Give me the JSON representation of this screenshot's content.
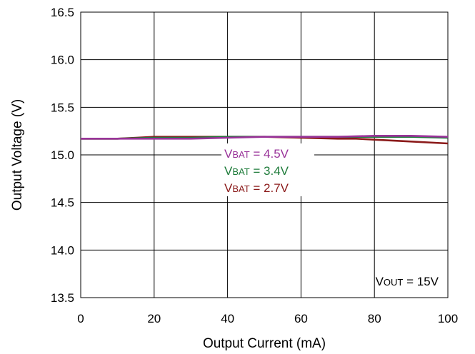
{
  "chart_data": {
    "type": "line",
    "xlabel": "Output Current (mA)",
    "ylabel": "Output Voltage (V)",
    "xlim": [
      0,
      100
    ],
    "ylim": [
      13.5,
      16.5
    ],
    "x_ticks": [
      "0",
      "20",
      "40",
      "60",
      "80",
      "100"
    ],
    "y_ticks": [
      "13.5",
      "14.0",
      "14.5",
      "15.0",
      "15.5",
      "16.0",
      "16.5"
    ],
    "grid": true,
    "series": [
      {
        "name_main": "V",
        "name_sub": "BAT",
        "name_rest": " = 2.7V",
        "color": "#8B1A1A",
        "x": [
          0,
          10,
          15,
          20,
          30,
          40,
          50,
          60,
          70,
          75,
          80,
          90,
          100
        ],
        "y": [
          15.17,
          15.17,
          15.18,
          15.19,
          15.19,
          15.19,
          15.19,
          15.18,
          15.17,
          15.17,
          15.16,
          15.14,
          15.12
        ]
      },
      {
        "name_main": "V",
        "name_sub": "BAT",
        "name_rest": " = 3.4V",
        "color": "#1E7B3A",
        "x": [
          0,
          10,
          20,
          30,
          40,
          50,
          60,
          70,
          80,
          90,
          100
        ],
        "y": [
          15.17,
          15.17,
          15.18,
          15.18,
          15.19,
          15.19,
          15.19,
          15.19,
          15.19,
          15.19,
          15.18
        ]
      },
      {
        "name_main": "V",
        "name_sub": "BAT",
        "name_rest": " = 4.5V",
        "color": "#993399",
        "x": [
          0,
          10,
          20,
          30,
          40,
          50,
          60,
          70,
          80,
          90,
          100
        ],
        "y": [
          15.17,
          15.17,
          15.17,
          15.17,
          15.18,
          15.19,
          15.19,
          15.19,
          15.2,
          15.2,
          15.19
        ]
      }
    ],
    "legend_order": [
      2,
      1,
      0
    ],
    "annotation": {
      "main": "V",
      "sub": "OUT",
      "rest": " = 15V"
    }
  }
}
